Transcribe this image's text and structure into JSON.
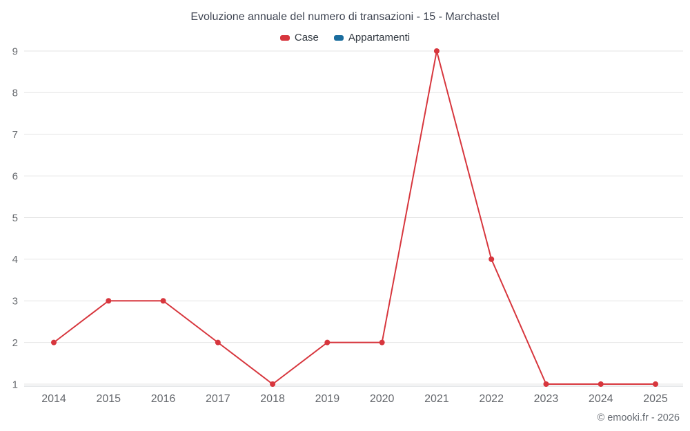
{
  "footer": "© emooki.fr - 2026",
  "chart_data": {
    "type": "line",
    "title": "Evoluzione annuale del numero di transazioni - 15 - Marchastel",
    "categories": [
      "2014",
      "2015",
      "2016",
      "2017",
      "2018",
      "2019",
      "2020",
      "2021",
      "2022",
      "2023",
      "2024",
      "2025"
    ],
    "series": [
      {
        "name": "Case",
        "color": "#d7363d",
        "values": [
          2,
          3,
          3,
          2,
          1,
          2,
          2,
          9,
          4,
          1,
          1,
          1
        ]
      },
      {
        "name": "Appartamenti",
        "color": "#1a6d9e",
        "values": []
      }
    ],
    "xlabel": "",
    "ylabel": "",
    "ylim": [
      1,
      9
    ],
    "yticks": [
      1,
      2,
      3,
      4,
      5,
      6,
      7,
      8,
      9
    ],
    "grid": "horizontal",
    "legend_position": "top"
  }
}
